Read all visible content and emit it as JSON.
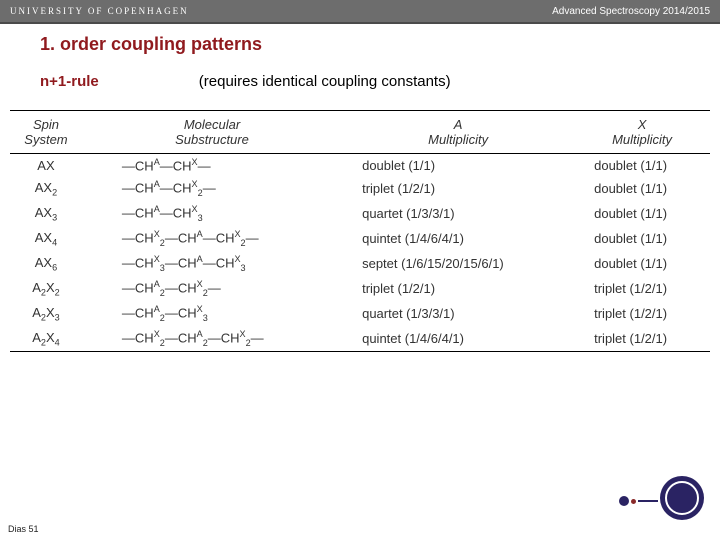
{
  "header": {
    "university": "UNIVERSITY OF COPENHAGEN",
    "course": "Advanced Spectroscopy 2014/2015"
  },
  "title": "1. order coupling patterns",
  "rule": "n+1-rule",
  "requirement": "(requires identical coupling constants)",
  "slide_number": "Dias 51",
  "table": {
    "headers": [
      "Spin\nSystem",
      "Molecular\nSubstructure",
      "A\nMultiplicity",
      "X\nMultiplicity"
    ],
    "rows": [
      {
        "spin": "AX",
        "sub": "—CHᴬ—CHˣ—",
        "a": "doublet (1/1)",
        "x": "doublet (1/1)"
      },
      {
        "spin": "AX₂",
        "sub": "—CHᴬ—CHˣ₂—",
        "a": "triplet (1/2/1)",
        "x": "doublet (1/1)"
      },
      {
        "spin": "AX₃",
        "sub": "—CHᴬ—CHˣ₃",
        "a": "quartet (1/3/3/1)",
        "x": "doublet (1/1)"
      },
      {
        "spin": "AX₄",
        "sub": "—CHˣ₂—CHᴬ—CHˣ₂—",
        "a": "quintet (1/4/6/4/1)",
        "x": "doublet (1/1)"
      },
      {
        "spin": "AX₆",
        "sub": "—CHˣ₃—CHᴬ—CHˣ₃",
        "a": "septet (1/6/15/20/15/6/1)",
        "x": "doublet (1/1)"
      },
      {
        "spin": "A₂X₂",
        "sub": "—CHᴬ₂—CHˣ₂—",
        "a": "triplet (1/2/1)",
        "x": "triplet (1/2/1)"
      },
      {
        "spin": "A₂X₃",
        "sub": "—CHᴬ₂—CHˣ₃",
        "a": "quartet (1/3/3/1)",
        "x": "triplet (1/2/1)"
      },
      {
        "spin": "A₂X₄",
        "sub": "—CHˣ₂—CHᴬ₂—CHˣ₂—",
        "a": "quintet (1/4/6/4/1)",
        "x": "triplet (1/2/1)"
      }
    ]
  }
}
